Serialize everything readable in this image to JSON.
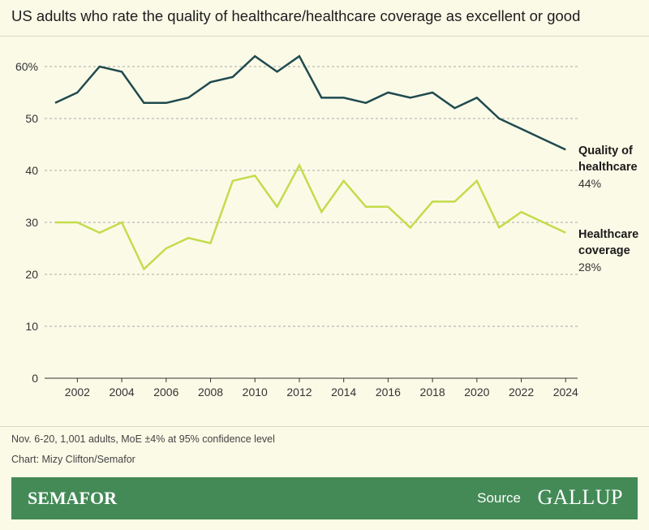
{
  "chart_data": {
    "type": "line",
    "title": "US adults who rate the quality of healthcare/healthcare coverage as excellent or good",
    "x": [
      2001,
      2002,
      2003,
      2004,
      2005,
      2006,
      2007,
      2008,
      2009,
      2010,
      2011,
      2012,
      2013,
      2014,
      2015,
      2016,
      2017,
      2018,
      2019,
      2020,
      2021,
      2022,
      2023,
      2024
    ],
    "xticks": [
      "2002",
      "2004",
      "2006",
      "2008",
      "2010",
      "2012",
      "2014",
      "2016",
      "2018",
      "2020",
      "2022",
      "2024"
    ],
    "yticks": [
      "0",
      "10",
      "20",
      "30",
      "40",
      "50",
      "60%"
    ],
    "ylim": [
      0,
      60
    ],
    "grid": true,
    "series": [
      {
        "name": "Quality of healthcare",
        "end_label": "44%",
        "color": "#1f4a4f",
        "values": [
          53,
          55,
          60,
          59,
          53,
          53,
          54,
          57,
          58,
          62,
          59,
          62,
          54,
          54,
          53,
          55,
          54,
          55,
          52,
          54,
          50,
          48,
          46,
          44
        ]
      },
      {
        "name": "Healthcare coverage",
        "end_label": "28%",
        "color": "#c3dc4c",
        "values": [
          30,
          30,
          28,
          30,
          21,
          25,
          27,
          26,
          38,
          39,
          33,
          41,
          32,
          38,
          33,
          33,
          29,
          34,
          34,
          38,
          29,
          32,
          30,
          28
        ]
      }
    ]
  },
  "footer": {
    "note": "Nov. 6-20, 1,001 adults, MoE ±4% at 95% confidence level",
    "credit": "Chart: Mizy Clifton/Semafor",
    "brand": "SEMAFOR",
    "source_label": "Source",
    "source_logo": "GALLUP"
  },
  "colors": {
    "background": "#fbfae7",
    "banner": "#448a57",
    "end_label_quality": "#2e5a66",
    "end_label_coverage": "#8aa52a"
  }
}
